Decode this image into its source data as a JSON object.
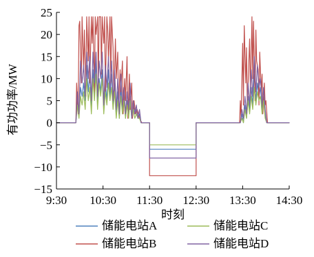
{
  "chart_data": {
    "type": "line",
    "xlabel": "时刻",
    "ylabel": "有功功率/MW",
    "xlim": [
      0,
      300
    ],
    "ylim": [
      -15,
      25
    ],
    "x_ticks": [
      {
        "value": 0,
        "label": "9:30"
      },
      {
        "value": 60,
        "label": "10:30"
      },
      {
        "value": 120,
        "label": "11:30"
      },
      {
        "value": 180,
        "label": "12:30"
      },
      {
        "value": 240,
        "label": "13:30"
      },
      {
        "value": 300,
        "label": "14:30"
      }
    ],
    "y_ticks": [
      {
        "value": 25,
        "label": "25"
      },
      {
        "value": 20,
        "label": "20"
      },
      {
        "value": 15,
        "label": "15"
      },
      {
        "value": 10,
        "label": "10"
      },
      {
        "value": 5,
        "label": "5"
      },
      {
        "value": 0,
        "label": "0"
      },
      {
        "value": -5,
        "label": "−5"
      },
      {
        "value": -10,
        "label": "−10"
      },
      {
        "value": -15,
        "label": "−15"
      }
    ],
    "grid": false,
    "legend_position": "bottom",
    "series": [
      {
        "name": "储能电站A",
        "color": "#4f81bd",
        "x": [
          0,
          25,
          27,
          29,
          31,
          33,
          35,
          37,
          39,
          41,
          43,
          45,
          47,
          49,
          51,
          53,
          55,
          57,
          59,
          61,
          63,
          65,
          67,
          69,
          71,
          73,
          75,
          77,
          79,
          81,
          83,
          85,
          87,
          89,
          91,
          93,
          95,
          97,
          99,
          101,
          103,
          105,
          107,
          109,
          120,
          120,
          180,
          180,
          237,
          239,
          241,
          243,
          245,
          247,
          249,
          251,
          253,
          255,
          257,
          259,
          261,
          263,
          265,
          267,
          269,
          271,
          300
        ],
        "y": [
          0,
          0,
          5,
          2,
          8,
          6,
          9,
          5,
          13,
          7,
          11,
          3,
          12,
          6,
          14,
          4,
          10,
          7,
          12,
          3,
          9,
          5,
          12,
          6,
          11,
          4,
          9,
          2,
          7,
          1,
          8,
          3,
          6,
          1,
          5,
          2,
          6,
          1,
          4,
          2,
          3,
          1,
          2,
          0,
          0,
          -6,
          -6,
          0,
          0,
          2,
          0,
          4,
          1,
          6,
          3,
          8,
          4,
          11,
          5,
          9,
          6,
          8,
          3,
          6,
          2,
          0,
          0
        ]
      },
      {
        "name": "储能电站B",
        "color": "#c0504d",
        "x": [
          0,
          25,
          26,
          28,
          29,
          30,
          32,
          33,
          35,
          36,
          38,
          39,
          41,
          42,
          43,
          45,
          46,
          47,
          49,
          50,
          51,
          53,
          54,
          55,
          57,
          58,
          59,
          61,
          62,
          63,
          65,
          66,
          67,
          69,
          70,
          71,
          73,
          74,
          76,
          77,
          79,
          80,
          82,
          83,
          85,
          86,
          88,
          89,
          91,
          92,
          94,
          95,
          97,
          98,
          100,
          102,
          104,
          107,
          110,
          120,
          120,
          180,
          180,
          236,
          237,
          238,
          240,
          241,
          242,
          244,
          245,
          246,
          248,
          249,
          250,
          252,
          253,
          254,
          256,
          257,
          258,
          260,
          261,
          262,
          264,
          265,
          266,
          268,
          269,
          270,
          272,
          300
        ],
        "y": [
          0,
          0,
          9,
          2,
          22,
          23,
          9,
          24,
          12,
          21,
          6,
          24,
          14,
          24,
          9,
          24,
          18,
          24,
          7,
          24,
          20,
          24,
          8,
          24,
          24,
          11,
          24,
          18,
          24,
          7,
          24,
          21,
          14,
          24,
          9,
          24,
          17,
          5,
          19,
          10,
          16,
          4,
          12,
          7,
          14,
          2,
          10,
          5,
          15,
          1,
          11,
          3,
          9,
          1,
          5,
          2,
          3,
          1,
          0,
          0,
          -12,
          -12,
          0,
          0,
          5,
          1,
          18,
          4,
          22,
          9,
          17,
          3,
          14,
          19,
          6,
          24,
          10,
          23,
          5,
          21,
          14,
          12,
          4,
          16,
          7,
          11,
          2,
          9,
          4,
          5,
          0,
          0
        ]
      },
      {
        "name": "储能电站C",
        "color": "#9bbb59",
        "x": [
          0,
          25,
          27,
          29,
          31,
          33,
          35,
          37,
          39,
          41,
          43,
          45,
          47,
          49,
          51,
          53,
          55,
          57,
          59,
          61,
          63,
          65,
          67,
          69,
          71,
          73,
          75,
          77,
          79,
          81,
          83,
          85,
          87,
          89,
          91,
          93,
          95,
          97,
          99,
          101,
          103,
          105,
          107,
          109,
          120,
          120,
          180,
          180,
          237,
          239,
          241,
          243,
          245,
          247,
          249,
          251,
          253,
          255,
          257,
          259,
          261,
          263,
          265,
          267,
          269,
          271,
          300
        ],
        "y": [
          0,
          0,
          4,
          1,
          6,
          4,
          7,
          3,
          10,
          5,
          8,
          2,
          10,
          5,
          11,
          3,
          9,
          6,
          10,
          2,
          7,
          4,
          9,
          5,
          8,
          3,
          7,
          1,
          5,
          1,
          6,
          2,
          5,
          1,
          4,
          1,
          5,
          1,
          3,
          1,
          2,
          1,
          1,
          0,
          0,
          -5,
          -5,
          0,
          0,
          1,
          0,
          3,
          1,
          5,
          2,
          6,
          3,
          8,
          4,
          7,
          5,
          6,
          2,
          5,
          1,
          0,
          0
        ]
      },
      {
        "name": "储能电站D",
        "color": "#8064a2",
        "x": [
          0,
          25,
          27,
          29,
          31,
          33,
          35,
          37,
          39,
          41,
          43,
          45,
          47,
          49,
          51,
          53,
          55,
          57,
          59,
          61,
          63,
          65,
          67,
          69,
          71,
          73,
          75,
          77,
          79,
          81,
          83,
          85,
          87,
          89,
          91,
          93,
          95,
          97,
          99,
          101,
          103,
          105,
          107,
          109,
          120,
          120,
          180,
          180,
          237,
          239,
          241,
          243,
          245,
          247,
          249,
          251,
          253,
          255,
          257,
          259,
          261,
          263,
          265,
          267,
          269,
          271,
          300
        ],
        "y": [
          0,
          0,
          7,
          2,
          14,
          9,
          13,
          6,
          16,
          10,
          15,
          5,
          16,
          9,
          16,
          6,
          14,
          10,
          16,
          4,
          13,
          8,
          15,
          7,
          14,
          5,
          12,
          3,
          10,
          2,
          11,
          4,
          8,
          2,
          7,
          3,
          9,
          1,
          5,
          2,
          4,
          1,
          3,
          0,
          0,
          -8,
          -8,
          0,
          0,
          3,
          1,
          6,
          2,
          9,
          4,
          12,
          6,
          15,
          7,
          13,
          8,
          10,
          4,
          8,
          3,
          0,
          0
        ]
      }
    ]
  }
}
